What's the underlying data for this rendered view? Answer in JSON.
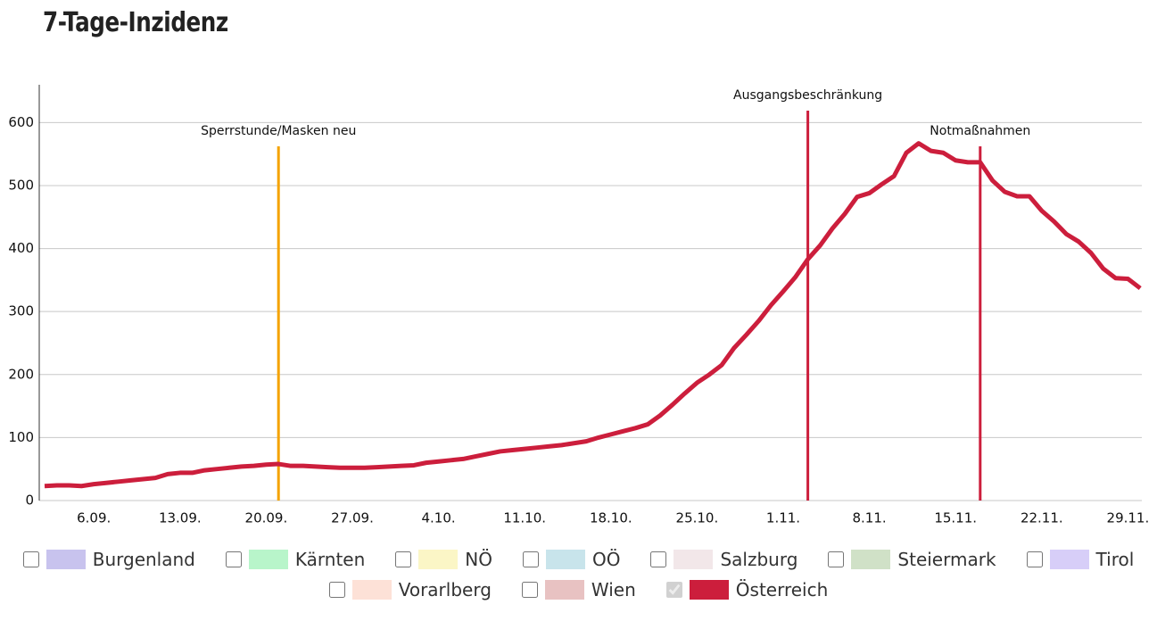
{
  "chart_data": {
    "type": "line",
    "title": "7-Tage-Inzidenz",
    "categories": [
      null,
      null,
      null,
      null,
      "6.09.",
      null,
      null,
      null,
      null,
      null,
      null,
      "13.09.",
      null,
      null,
      null,
      null,
      null,
      null,
      "20.09.",
      null,
      null,
      null,
      null,
      null,
      null,
      "27.09.",
      null,
      null,
      null,
      null,
      null,
      null,
      "4.10.",
      null,
      null,
      null,
      null,
      null,
      null,
      "11.10.",
      null,
      null,
      null,
      null,
      null,
      null,
      "18.10.",
      null,
      null,
      null,
      null,
      null,
      null,
      "25.10.",
      null,
      null,
      null,
      null,
      null,
      null,
      "1.11.",
      null,
      null,
      null,
      null,
      null,
      null,
      "8.11.",
      null,
      null,
      null,
      null,
      null,
      null,
      "15.11.",
      null,
      null,
      null,
      null,
      null,
      null,
      "22.11.",
      null,
      null,
      null,
      null,
      null,
      null,
      "29.11.",
      null
    ],
    "series": [
      {
        "name": "Burgenland",
        "color": "#c8c3ee",
        "checked": false
      },
      {
        "name": "Kärnten",
        "color": "#b8f5ca",
        "checked": false
      },
      {
        "name": "NÖ",
        "color": "#fbf6c6",
        "checked": false
      },
      {
        "name": "OÖ",
        "color": "#c8e4eb",
        "checked": false
      },
      {
        "name": "Salzburg",
        "color": "#f2e7e9",
        "checked": false
      },
      {
        "name": "Steiermark",
        "color": "#d0e1c7",
        "checked": false
      },
      {
        "name": "Tirol",
        "color": "#d7cef8",
        "checked": false
      },
      {
        "name": "Vorarlberg",
        "color": "#fde1d7",
        "checked": false
      },
      {
        "name": "Wien",
        "color": "#e8c2c2",
        "checked": false
      },
      {
        "name": "Österreich",
        "color": "#cc1e3c",
        "checked": true,
        "values": [
          23,
          24,
          24,
          23,
          26,
          28,
          30,
          32,
          34,
          36,
          42,
          44,
          44,
          48,
          50,
          52,
          54,
          55,
          57,
          58,
          55,
          55,
          54,
          53,
          52,
          52,
          52,
          53,
          54,
          55,
          56,
          60,
          62,
          64,
          66,
          70,
          74,
          78,
          80,
          82,
          84,
          86,
          88,
          91,
          94,
          100,
          105,
          110,
          115,
          121,
          135,
          152,
          170,
          187,
          200,
          215,
          242,
          263,
          285,
          310,
          332,
          355,
          383,
          405,
          432,
          455,
          482,
          488,
          502,
          515,
          552,
          567,
          555,
          552,
          540,
          537,
          537,
          508,
          490,
          483,
          483,
          460,
          443,
          423,
          411,
          393,
          368,
          353,
          352,
          337
        ]
      }
    ],
    "annotations": [
      {
        "label": "Sperrstunde/Masken neu",
        "x": 19,
        "color": "#f5a300"
      },
      {
        "label": "Ausgangsbeschränkung",
        "x": 62,
        "color": "#cc1e3c"
      },
      {
        "label": "Notmaßnahmen",
        "x": 76,
        "color": "#cc1e3c"
      }
    ],
    "ylim": [
      0,
      660
    ],
    "yticks": [
      0,
      100,
      200,
      300,
      400,
      500,
      600
    ],
    "grid": true
  }
}
